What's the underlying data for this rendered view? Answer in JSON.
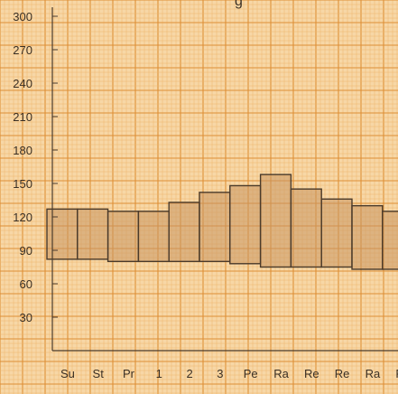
{
  "chart_data": {
    "type": "bar",
    "title_fragment": "g",
    "categories": [
      "Su",
      "St",
      "Pr",
      "1",
      "2",
      "3",
      "Pe",
      "Ra",
      "Re",
      "Re",
      "Ra",
      "Re"
    ],
    "ranges": [
      [
        82,
        127
      ],
      [
        82,
        127
      ],
      [
        80,
        125
      ],
      [
        80,
        125
      ],
      [
        80,
        133
      ],
      [
        80,
        142
      ],
      [
        78,
        148
      ],
      [
        75,
        158
      ],
      [
        75,
        145
      ],
      [
        75,
        136
      ],
      [
        73,
        130
      ],
      [
        73,
        125
      ]
    ],
    "ylim": [
      0,
      300
    ],
    "yticks": [
      30,
      60,
      90,
      120,
      150,
      180,
      210,
      240,
      270,
      300
    ],
    "grid": true,
    "colors": {
      "paper": "#f7d7a6",
      "grid_minor": "#eeb66d",
      "grid_major": "#de8f36",
      "bar_fill": "#c99562",
      "bar_stroke": "#4a3a2a",
      "axis": "#4a3a2a"
    }
  }
}
